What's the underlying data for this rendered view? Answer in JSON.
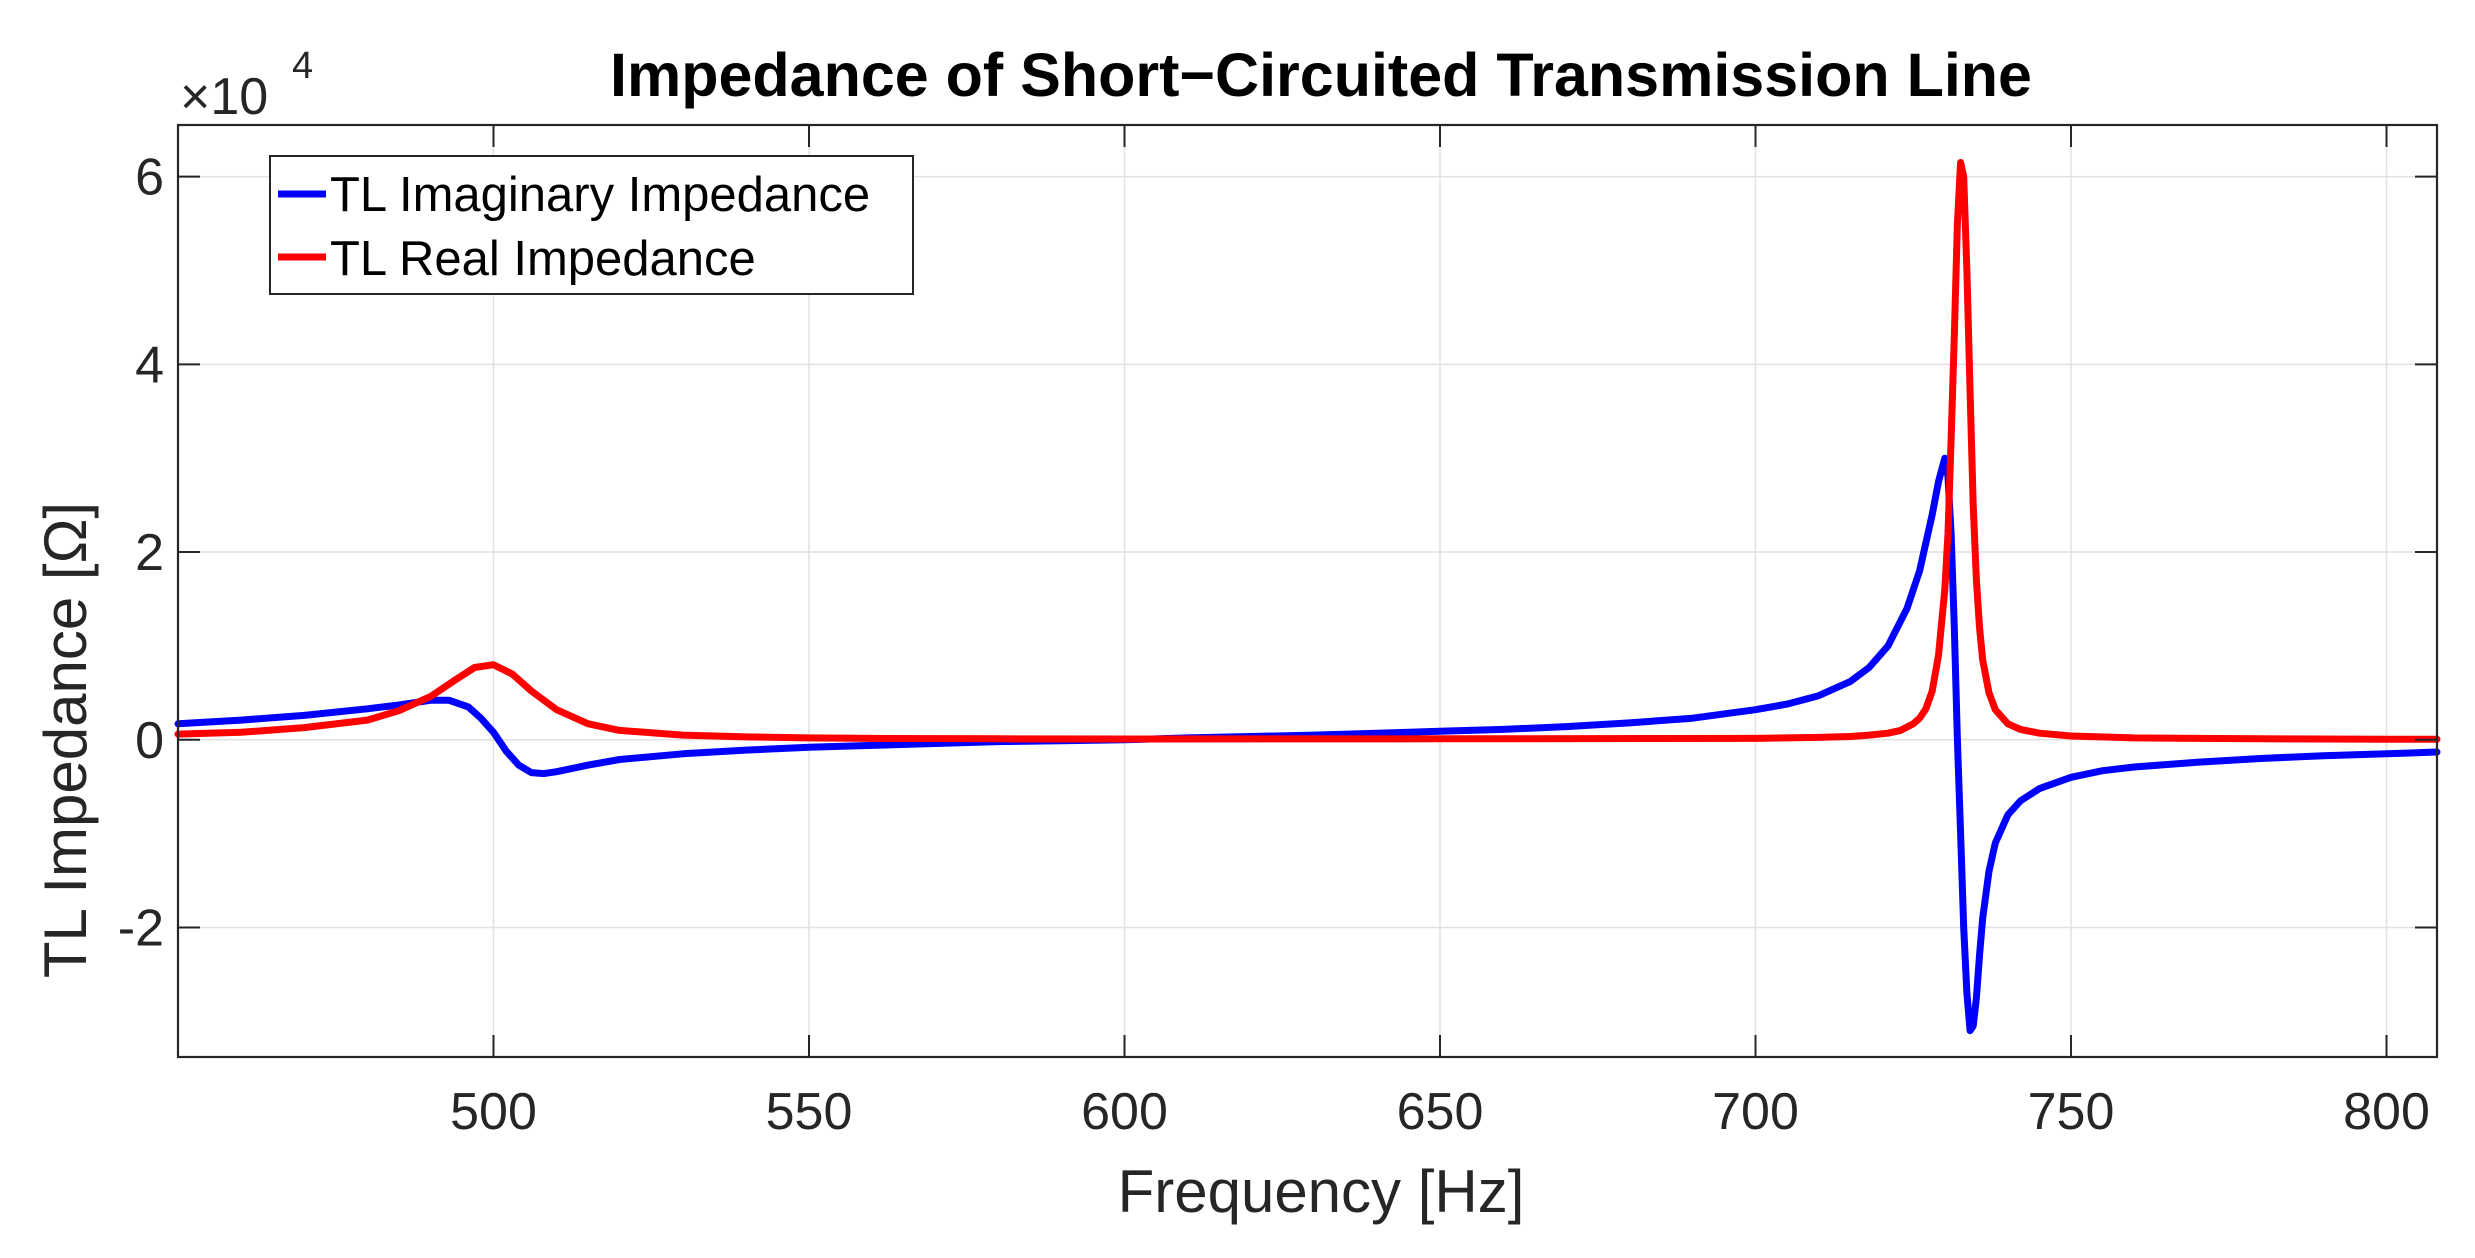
{
  "chart_data": {
    "type": "line",
    "title": "Impedance of Short−Circuited Transmission Line",
    "xlabel": "Frequency [Hz]",
    "ylabel": "TL Impedance [Ω]",
    "xlim": [
      450,
      808
    ],
    "ylim": [
      -33800,
      65500
    ],
    "y_multiplier_base": "×10",
    "y_multiplier_exponent": "4",
    "x_ticks": [
      500,
      550,
      600,
      650,
      700,
      750,
      800
    ],
    "x_tick_labels": [
      "500",
      "550",
      "600",
      "650",
      "700",
      "750",
      "800"
    ],
    "y_ticks": [
      -20000,
      0,
      20000,
      40000,
      60000
    ],
    "y_tick_labels": [
      "-2",
      "0",
      "2",
      "4",
      "6"
    ],
    "grid": true,
    "legend_position": "top-left",
    "series": [
      {
        "name": "TL Imaginary Impedance",
        "color": "#0000ff",
        "x": [
          450,
          460,
          470,
          480,
          485,
          490,
          493,
          496,
          498,
          500,
          502,
          504,
          506,
          508,
          510,
          515,
          520,
          530,
          540,
          550,
          560,
          570,
          580,
          590,
          600,
          610,
          620,
          630,
          640,
          650,
          660,
          670,
          680,
          690,
          700,
          705,
          710,
          715,
          718,
          721,
          724,
          726,
          728,
          729,
          730,
          730.5,
          731,
          731.5,
          732,
          732.5,
          733,
          733.5,
          734,
          734.5,
          735,
          735.5,
          736,
          737,
          738,
          740,
          742,
          745,
          750,
          755,
          760,
          770,
          780,
          790,
          800,
          808
        ],
        "y": [
          1700,
          2100,
          2600,
          3300,
          3700,
          4200,
          4200,
          3500,
          2300,
          800,
          -1200,
          -2700,
          -3500,
          -3600,
          -3400,
          -2700,
          -2100,
          -1500,
          -1100,
          -800,
          -600,
          -400,
          -200,
          -100,
          0,
          200,
          350,
          500,
          700,
          900,
          1100,
          1400,
          1800,
          2300,
          3200,
          3800,
          4700,
          6200,
          7700,
          10000,
          14000,
          18000,
          24000,
          27500,
          30000,
          28000,
          22000,
          12000,
          0,
          -10000,
          -20000,
          -27000,
          -31000,
          -30500,
          -27500,
          -23000,
          -19000,
          -14000,
          -11000,
          -8000,
          -6500,
          -5200,
          -4000,
          -3300,
          -2900,
          -2400,
          -2000,
          -1700,
          -1500,
          -1300
        ]
      },
      {
        "name": "TL Real Impedance",
        "color": "#ff0000",
        "x": [
          450,
          460,
          470,
          480,
          485,
          490,
          494,
          497,
          500,
          503,
          506,
          510,
          515,
          520,
          530,
          540,
          550,
          560,
          580,
          600,
          650,
          700,
          710,
          715,
          718,
          721,
          723,
          725,
          726,
          727,
          728,
          729,
          730,
          730.5,
          731,
          731.5,
          732,
          732.5,
          733,
          733.5,
          734,
          734.5,
          735,
          735.5,
          736,
          737,
          738,
          740,
          742,
          745,
          750,
          760,
          780,
          800,
          808
        ],
        "y": [
          600,
          800,
          1300,
          2100,
          3100,
          4600,
          6400,
          7700,
          8000,
          7000,
          5200,
          3200,
          1700,
          1000,
          500,
          300,
          200,
          150,
          100,
          80,
          100,
          150,
          250,
          350,
          500,
          700,
          1000,
          1700,
          2300,
          3300,
          5200,
          9000,
          16000,
          22000,
          32000,
          43000,
          55000,
          61500,
          60000,
          50000,
          37000,
          25000,
          17000,
          12000,
          8500,
          5000,
          3200,
          1700,
          1100,
          700,
          400,
          200,
          100,
          50,
          50
        ]
      }
    ]
  }
}
